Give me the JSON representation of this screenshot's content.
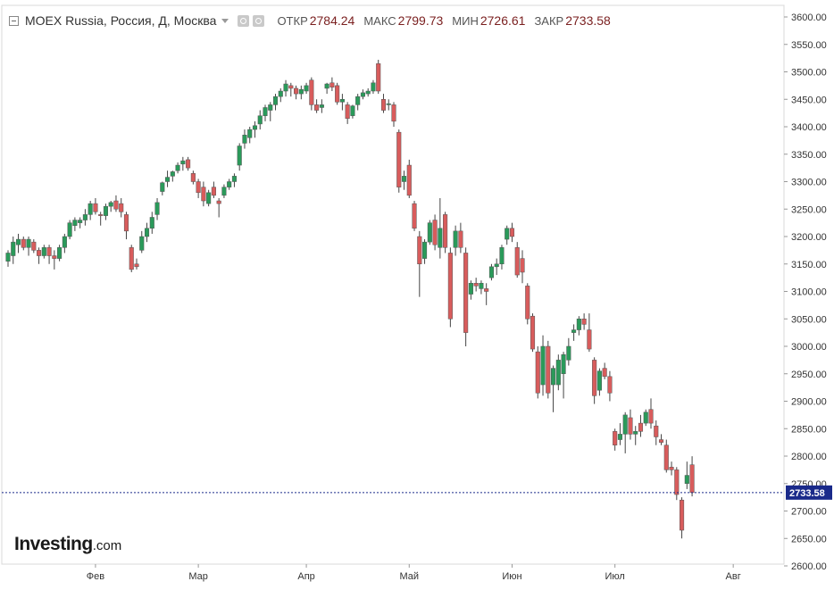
{
  "legend": {
    "title": "MOEX Russia, Россия, Д, Москва",
    "open_label": "ОТКР",
    "open_value": "2784.24",
    "high_label": "МАКС",
    "high_value": "2799.73",
    "low_label": "МИН",
    "low_value": "2726.61",
    "close_label": "ЗАКР",
    "close_value": "2733.58"
  },
  "logo": {
    "main": "Investing",
    "suffix": ".com"
  },
  "colors": {
    "up": "#2a9a5a",
    "down": "#d85c5c",
    "wick": "#444444",
    "last_price": "#1a2a8a",
    "grid": "#e6e6e6"
  },
  "chart_data": {
    "type": "candlestick",
    "title": "",
    "ylim": [
      2600,
      3600
    ],
    "y_ticks": [
      "3600.00",
      "3550.00",
      "3500.00",
      "3450.00",
      "3400.00",
      "3350.00",
      "3300.00",
      "3250.00",
      "3200.00",
      "3150.00",
      "3100.00",
      "3050.00",
      "3000.00",
      "2950.00",
      "2900.00",
      "2850.00",
      "2800.00",
      "2750.00",
      "2700.00",
      "2650.00",
      "2600.00"
    ],
    "x_ticks": [
      {
        "label": "Фев",
        "index": 17
      },
      {
        "label": "Мар",
        "index": 37
      },
      {
        "label": "Апр",
        "index": 58
      },
      {
        "label": "Май",
        "index": 78
      },
      {
        "label": "Июн",
        "index": 98
      },
      {
        "label": "Июл",
        "index": 118
      },
      {
        "label": "Авг",
        "index": 141
      }
    ],
    "last_price": 2733.58,
    "last_price_label": "2733.58",
    "candles": [
      {
        "o": 3155,
        "h": 3175,
        "l": 3145,
        "c": 3170
      },
      {
        "o": 3165,
        "h": 3200,
        "l": 3150,
        "c": 3190
      },
      {
        "o": 3185,
        "h": 3205,
        "l": 3170,
        "c": 3195
      },
      {
        "o": 3195,
        "h": 3200,
        "l": 3175,
        "c": 3180
      },
      {
        "o": 3180,
        "h": 3200,
        "l": 3165,
        "c": 3195
      },
      {
        "o": 3190,
        "h": 3195,
        "l": 3170,
        "c": 3175
      },
      {
        "o": 3175,
        "h": 3180,
        "l": 3150,
        "c": 3165
      },
      {
        "o": 3165,
        "h": 3185,
        "l": 3160,
        "c": 3180
      },
      {
        "o": 3180,
        "h": 3185,
        "l": 3150,
        "c": 3165
      },
      {
        "o": 3165,
        "h": 3175,
        "l": 3140,
        "c": 3160
      },
      {
        "o": 3160,
        "h": 3185,
        "l": 3155,
        "c": 3180
      },
      {
        "o": 3180,
        "h": 3205,
        "l": 3170,
        "c": 3200
      },
      {
        "o": 3200,
        "h": 3230,
        "l": 3195,
        "c": 3225
      },
      {
        "o": 3220,
        "h": 3235,
        "l": 3210,
        "c": 3230
      },
      {
        "o": 3225,
        "h": 3235,
        "l": 3215,
        "c": 3230
      },
      {
        "o": 3230,
        "h": 3250,
        "l": 3220,
        "c": 3240
      },
      {
        "o": 3240,
        "h": 3265,
        "l": 3230,
        "c": 3260
      },
      {
        "o": 3260,
        "h": 3270,
        "l": 3240,
        "c": 3245
      },
      {
        "o": 3240,
        "h": 3245,
        "l": 3220,
        "c": 3238
      },
      {
        "o": 3238,
        "h": 3260,
        "l": 3230,
        "c": 3255
      },
      {
        "o": 3255,
        "h": 3265,
        "l": 3245,
        "c": 3262
      },
      {
        "o": 3265,
        "h": 3275,
        "l": 3245,
        "c": 3250
      },
      {
        "o": 3260,
        "h": 3270,
        "l": 3235,
        "c": 3245
      },
      {
        "o": 3240,
        "h": 3245,
        "l": 3195,
        "c": 3210
      },
      {
        "o": 3180,
        "h": 3185,
        "l": 3135,
        "c": 3140
      },
      {
        "o": 3150,
        "h": 3160,
        "l": 3140,
        "c": 3145
      },
      {
        "o": 3175,
        "h": 3210,
        "l": 3170,
        "c": 3200
      },
      {
        "o": 3200,
        "h": 3225,
        "l": 3190,
        "c": 3215
      },
      {
        "o": 3215,
        "h": 3245,
        "l": 3205,
        "c": 3235
      },
      {
        "o": 3240,
        "h": 3270,
        "l": 3230,
        "c": 3262
      },
      {
        "o": 3282,
        "h": 3300,
        "l": 3275,
        "c": 3298
      },
      {
        "o": 3300,
        "h": 3320,
        "l": 3290,
        "c": 3308
      },
      {
        "o": 3310,
        "h": 3320,
        "l": 3300,
        "c": 3318
      },
      {
        "o": 3320,
        "h": 3335,
        "l": 3315,
        "c": 3330
      },
      {
        "o": 3332,
        "h": 3345,
        "l": 3320,
        "c": 3338
      },
      {
        "o": 3340,
        "h": 3345,
        "l": 3320,
        "c": 3325
      },
      {
        "o": 3315,
        "h": 3320,
        "l": 3295,
        "c": 3300
      },
      {
        "o": 3300,
        "h": 3305,
        "l": 3270,
        "c": 3280
      },
      {
        "o": 3290,
        "h": 3300,
        "l": 3255,
        "c": 3265
      },
      {
        "o": 3260,
        "h": 3285,
        "l": 3255,
        "c": 3280
      },
      {
        "o": 3290,
        "h": 3300,
        "l": 3270,
        "c": 3275
      },
      {
        "o": 3265,
        "h": 3270,
        "l": 3235,
        "c": 3260
      },
      {
        "o": 3275,
        "h": 3295,
        "l": 3270,
        "c": 3290
      },
      {
        "o": 3290,
        "h": 3305,
        "l": 3285,
        "c": 3300
      },
      {
        "o": 3300,
        "h": 3315,
        "l": 3290,
        "c": 3310
      },
      {
        "o": 3330,
        "h": 3370,
        "l": 3320,
        "c": 3365
      },
      {
        "o": 3370,
        "h": 3395,
        "l": 3360,
        "c": 3385
      },
      {
        "o": 3380,
        "h": 3400,
        "l": 3370,
        "c": 3395
      },
      {
        "o": 3395,
        "h": 3410,
        "l": 3380,
        "c": 3402
      },
      {
        "o": 3405,
        "h": 3430,
        "l": 3395,
        "c": 3420
      },
      {
        "o": 3420,
        "h": 3440,
        "l": 3410,
        "c": 3435
      },
      {
        "o": 3430,
        "h": 3445,
        "l": 3410,
        "c": 3440
      },
      {
        "o": 3440,
        "h": 3460,
        "l": 3430,
        "c": 3455
      },
      {
        "o": 3455,
        "h": 3470,
        "l": 3445,
        "c": 3465
      },
      {
        "o": 3465,
        "h": 3485,
        "l": 3455,
        "c": 3478
      },
      {
        "o": 3475,
        "h": 3480,
        "l": 3455,
        "c": 3470
      },
      {
        "o": 3470,
        "h": 3475,
        "l": 3450,
        "c": 3460
      },
      {
        "o": 3460,
        "h": 3475,
        "l": 3450,
        "c": 3468
      },
      {
        "o": 3465,
        "h": 3480,
        "l": 3460,
        "c": 3475
      },
      {
        "o": 3485,
        "h": 3490,
        "l": 3430,
        "c": 3440
      },
      {
        "o": 3440,
        "h": 3450,
        "l": 3425,
        "c": 3430
      },
      {
        "o": 3435,
        "h": 3450,
        "l": 3425,
        "c": 3440
      },
      {
        "o": 3470,
        "h": 3480,
        "l": 3460,
        "c": 3478
      },
      {
        "o": 3480,
        "h": 3490,
        "l": 3465,
        "c": 3472
      },
      {
        "o": 3475,
        "h": 3480,
        "l": 3440,
        "c": 3445
      },
      {
        "o": 3445,
        "h": 3460,
        "l": 3430,
        "c": 3450
      },
      {
        "o": 3440,
        "h": 3445,
        "l": 3405,
        "c": 3415
      },
      {
        "o": 3420,
        "h": 3440,
        "l": 3415,
        "c": 3438
      },
      {
        "o": 3440,
        "h": 3460,
        "l": 3430,
        "c": 3455
      },
      {
        "o": 3455,
        "h": 3468,
        "l": 3450,
        "c": 3462
      },
      {
        "o": 3460,
        "h": 3470,
        "l": 3455,
        "c": 3465
      },
      {
        "o": 3465,
        "h": 3485,
        "l": 3460,
        "c": 3480
      },
      {
        "o": 3515,
        "h": 3522,
        "l": 3460,
        "c": 3465
      },
      {
        "o": 3450,
        "h": 3460,
        "l": 3425,
        "c": 3430
      },
      {
        "o": 3440,
        "h": 3450,
        "l": 3430,
        "c": 3442
      },
      {
        "o": 3440,
        "h": 3445,
        "l": 3400,
        "c": 3410
      },
      {
        "o": 3390,
        "h": 3395,
        "l": 3280,
        "c": 3290
      },
      {
        "o": 3300,
        "h": 3320,
        "l": 3285,
        "c": 3310
      },
      {
        "o": 3330,
        "h": 3340,
        "l": 3270,
        "c": 3275
      },
      {
        "o": 3260,
        "h": 3265,
        "l": 3210,
        "c": 3215
      },
      {
        "o": 3200,
        "h": 3210,
        "l": 3090,
        "c": 3150
      },
      {
        "o": 3160,
        "h": 3195,
        "l": 3150,
        "c": 3190
      },
      {
        "o": 3190,
        "h": 3230,
        "l": 3185,
        "c": 3225
      },
      {
        "o": 3230,
        "h": 3240,
        "l": 3175,
        "c": 3185
      },
      {
        "o": 3180,
        "h": 3270,
        "l": 3160,
        "c": 3215
      },
      {
        "o": 3240,
        "h": 3245,
        "l": 3170,
        "c": 3180
      },
      {
        "o": 3170,
        "h": 3180,
        "l": 3035,
        "c": 3050
      },
      {
        "o": 3180,
        "h": 3220,
        "l": 3165,
        "c": 3210
      },
      {
        "o": 3210,
        "h": 3225,
        "l": 3170,
        "c": 3180
      },
      {
        "o": 3170,
        "h": 3180,
        "l": 3000,
        "c": 3025
      },
      {
        "o": 3095,
        "h": 3120,
        "l": 3085,
        "c": 3115
      },
      {
        "o": 3115,
        "h": 3125,
        "l": 3100,
        "c": 3110
      },
      {
        "o": 3105,
        "h": 3120,
        "l": 3095,
        "c": 3115
      },
      {
        "o": 3105,
        "h": 3115,
        "l": 3075,
        "c": 3100
      },
      {
        "o": 3125,
        "h": 3150,
        "l": 3120,
        "c": 3145
      },
      {
        "o": 3145,
        "h": 3160,
        "l": 3130,
        "c": 3150
      },
      {
        "o": 3150,
        "h": 3185,
        "l": 3140,
        "c": 3180
      },
      {
        "o": 3195,
        "h": 3220,
        "l": 3185,
        "c": 3215
      },
      {
        "o": 3215,
        "h": 3225,
        "l": 3190,
        "c": 3200
      },
      {
        "o": 3180,
        "h": 3190,
        "l": 3125,
        "c": 3130
      },
      {
        "o": 3160,
        "h": 3175,
        "l": 3115,
        "c": 3135
      },
      {
        "o": 3110,
        "h": 3115,
        "l": 3040,
        "c": 3050
      },
      {
        "o": 3055,
        "h": 3060,
        "l": 2990,
        "c": 2995
      },
      {
        "o": 2990,
        "h": 3000,
        "l": 2905,
        "c": 2915
      },
      {
        "o": 2930,
        "h": 3020,
        "l": 2910,
        "c": 3000
      },
      {
        "o": 3000,
        "h": 3010,
        "l": 2905,
        "c": 2915
      },
      {
        "o": 2930,
        "h": 2965,
        "l": 2880,
        "c": 2960
      },
      {
        "o": 2930,
        "h": 2985,
        "l": 2920,
        "c": 2975
      },
      {
        "o": 2950,
        "h": 2990,
        "l": 2905,
        "c": 2985
      },
      {
        "o": 2975,
        "h": 3015,
        "l": 2965,
        "c": 3000
      },
      {
        "o": 3025,
        "h": 3040,
        "l": 3010,
        "c": 3030
      },
      {
        "o": 3030,
        "h": 3055,
        "l": 3020,
        "c": 3050
      },
      {
        "o": 3050,
        "h": 3060,
        "l": 3030,
        "c": 3040
      },
      {
        "o": 3030,
        "h": 3060,
        "l": 2990,
        "c": 2995
      },
      {
        "o": 2975,
        "h": 2980,
        "l": 2895,
        "c": 2910
      },
      {
        "o": 2920,
        "h": 2960,
        "l": 2910,
        "c": 2955
      },
      {
        "o": 2960,
        "h": 2970,
        "l": 2940,
        "c": 2945
      },
      {
        "o": 2945,
        "h": 2955,
        "l": 2900,
        "c": 2915
      },
      {
        "o": 2845,
        "h": 2850,
        "l": 2810,
        "c": 2820
      },
      {
        "o": 2830,
        "h": 2860,
        "l": 2820,
        "c": 2840
      },
      {
        "o": 2840,
        "h": 2880,
        "l": 2805,
        "c": 2875
      },
      {
        "o": 2870,
        "h": 2885,
        "l": 2830,
        "c": 2840
      },
      {
        "o": 2840,
        "h": 2855,
        "l": 2820,
        "c": 2845
      },
      {
        "o": 2860,
        "h": 2875,
        "l": 2835,
        "c": 2845
      },
      {
        "o": 2860,
        "h": 2885,
        "l": 2855,
        "c": 2880
      },
      {
        "o": 2885,
        "h": 2905,
        "l": 2850,
        "c": 2860
      },
      {
        "o": 2855,
        "h": 2865,
        "l": 2820,
        "c": 2835
      },
      {
        "o": 2830,
        "h": 2840,
        "l": 2820,
        "c": 2825
      },
      {
        "o": 2820,
        "h": 2830,
        "l": 2770,
        "c": 2775
      },
      {
        "o": 2780,
        "h": 2790,
        "l": 2765,
        "c": 2775
      },
      {
        "o": 2775,
        "h": 2780,
        "l": 2720,
        "c": 2730
      },
      {
        "o": 2720,
        "h": 2725,
        "l": 2650,
        "c": 2665
      },
      {
        "o": 2750,
        "h": 2790,
        "l": 2740,
        "c": 2765
      },
      {
        "o": 2784.24,
        "h": 2799.73,
        "l": 2726.61,
        "c": 2733.58
      }
    ]
  }
}
